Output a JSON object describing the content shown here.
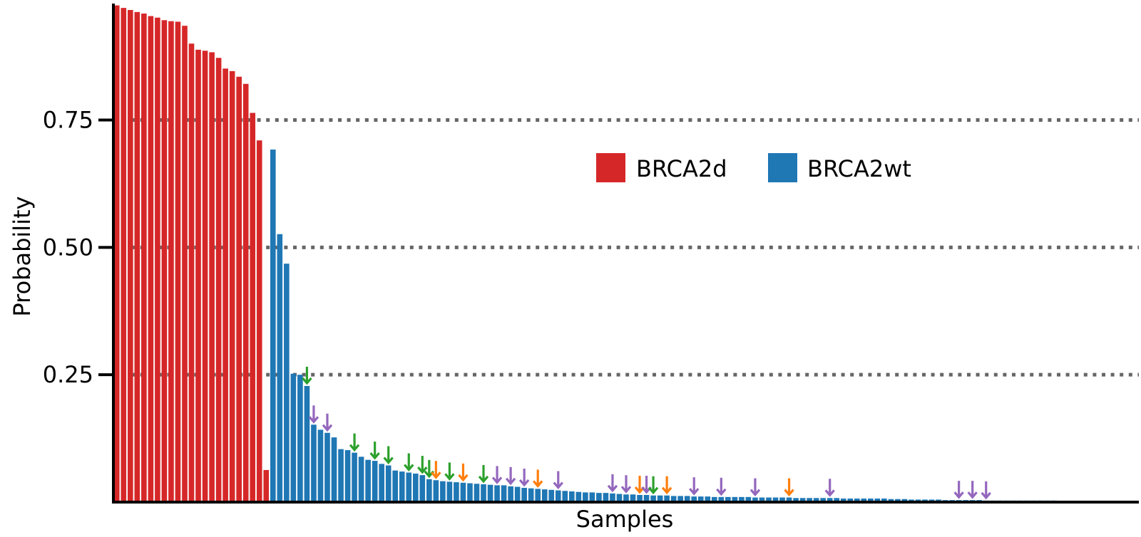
{
  "chart_data": {
    "type": "bar",
    "xlabel": "Samples",
    "ylabel": "Probability",
    "ylim": [
      0,
      0.98
    ],
    "y_ticks": [
      {
        "value": 0.25,
        "label": "0.25"
      },
      {
        "value": 0.5,
        "label": "0.50"
      },
      {
        "value": 0.75,
        "label": "0.75"
      }
    ],
    "gridlines": [
      0.25,
      0.5,
      0.75
    ],
    "grid": "dotted horizontal at y ticks",
    "legend": {
      "placement": "upper-center",
      "entries": [
        {
          "label": "BRCA2d",
          "color": "#d62728"
        },
        {
          "label": "BRCA2wt",
          "color": "#1f77b4"
        }
      ]
    },
    "series": [
      {
        "name": "BRCA2d",
        "color": "#d62728",
        "values": [
          0.975,
          0.97,
          0.966,
          0.962,
          0.959,
          0.954,
          0.951,
          0.946,
          0.944,
          0.943,
          0.935,
          0.9,
          0.888,
          0.886,
          0.883,
          0.872,
          0.851,
          0.846,
          0.835,
          0.821,
          0.764,
          0.71,
          0.063
        ]
      },
      {
        "name": "BRCA2wt",
        "color": "#1f77b4",
        "values": [
          0.692,
          0.526,
          0.468,
          0.252,
          0.25,
          0.228,
          0.152,
          0.142,
          0.136,
          0.127,
          0.104,
          0.102,
          0.097,
          0.089,
          0.083,
          0.081,
          0.075,
          0.072,
          0.062,
          0.06,
          0.058,
          0.056,
          0.053,
          0.045,
          0.043,
          0.041,
          0.04,
          0.039,
          0.038,
          0.037,
          0.036,
          0.035,
          0.034,
          0.033,
          0.033,
          0.031,
          0.03,
          0.028,
          0.027,
          0.026,
          0.025,
          0.024,
          0.023,
          0.022,
          0.021,
          0.02,
          0.019,
          0.019,
          0.018,
          0.018,
          0.017,
          0.016,
          0.015,
          0.015,
          0.014,
          0.014,
          0.013,
          0.013,
          0.013,
          0.012,
          0.012,
          0.012,
          0.011,
          0.011,
          0.011,
          0.01,
          0.01,
          0.01,
          0.01,
          0.01,
          0.01,
          0.009,
          0.009,
          0.009,
          0.009,
          0.009,
          0.009,
          0.008,
          0.008,
          0.008,
          0.008,
          0.008,
          0.008,
          0.008,
          0.007,
          0.007,
          0.007,
          0.007,
          0.007,
          0.007,
          0.007,
          0.006,
          0.006,
          0.006,
          0.005,
          0.005,
          0.005,
          0.005,
          0.005,
          0.004,
          0.004,
          0.004,
          0.004,
          0.004,
          0.004,
          0.003,
          0.003,
          0.003,
          0.003,
          0.003,
          0.003,
          0.003,
          0.003,
          0.003,
          0.003,
          0.003,
          0.002,
          0.002,
          0.002,
          0.002,
          0.002,
          0.002,
          0.002,
          0.002,
          0.002,
          0.002,
          0.002,
          0.002
        ]
      }
    ],
    "annotations": {
      "type": "down-arrows",
      "colors": {
        "green": "#2ca02c",
        "orange": "#ff7f0e",
        "purple": "#9467bd"
      },
      "markers": [
        {
          "sample": 28,
          "color": "green"
        },
        {
          "sample": 29,
          "color": "purple"
        },
        {
          "sample": 31,
          "color": "purple"
        },
        {
          "sample": 35,
          "color": "green"
        },
        {
          "sample": 38,
          "color": "green"
        },
        {
          "sample": 40,
          "color": "green"
        },
        {
          "sample": 43,
          "color": "green"
        },
        {
          "sample": 45,
          "color": "green"
        },
        {
          "sample": 46,
          "color": "green"
        },
        {
          "sample": 47,
          "color": "orange"
        },
        {
          "sample": 49,
          "color": "green"
        },
        {
          "sample": 51,
          "color": "orange"
        },
        {
          "sample": 54,
          "color": "green"
        },
        {
          "sample": 56,
          "color": "purple"
        },
        {
          "sample": 58,
          "color": "purple"
        },
        {
          "sample": 60,
          "color": "purple"
        },
        {
          "sample": 62,
          "color": "orange"
        },
        {
          "sample": 65,
          "color": "purple"
        },
        {
          "sample": 73,
          "color": "purple"
        },
        {
          "sample": 75,
          "color": "purple"
        },
        {
          "sample": 77,
          "color": "orange"
        },
        {
          "sample": 78,
          "color": "purple"
        },
        {
          "sample": 79,
          "color": "green"
        },
        {
          "sample": 81,
          "color": "orange"
        },
        {
          "sample": 85,
          "color": "purple"
        },
        {
          "sample": 89,
          "color": "purple"
        },
        {
          "sample": 94,
          "color": "purple"
        },
        {
          "sample": 99,
          "color": "orange"
        },
        {
          "sample": 105,
          "color": "purple"
        },
        {
          "sample": 124,
          "color": "purple"
        },
        {
          "sample": 126,
          "color": "purple"
        },
        {
          "sample": 128,
          "color": "purple"
        }
      ]
    }
  }
}
